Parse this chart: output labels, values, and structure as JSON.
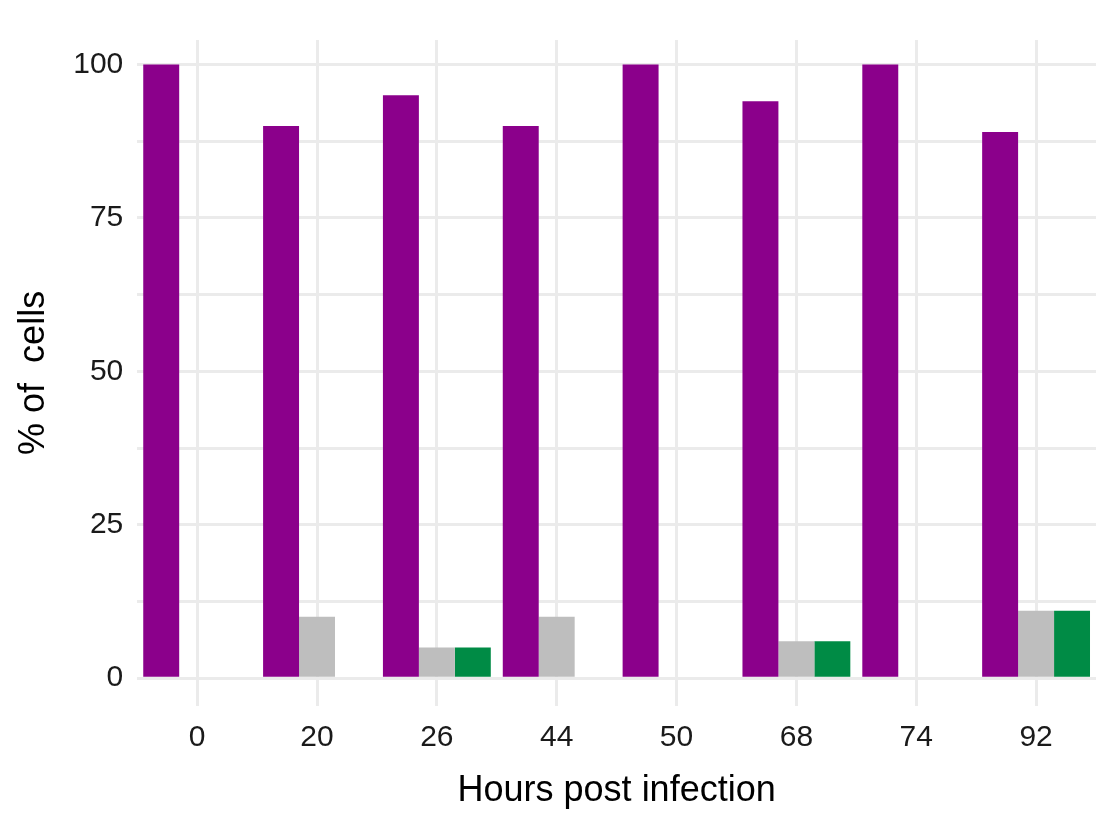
{
  "chart_data": {
    "type": "bar",
    "xlabel": "Hours post infection",
    "ylabel": "% of  cells",
    "categories": [
      "0",
      "20",
      "26",
      "44",
      "50",
      "68",
      "74",
      "92"
    ],
    "series": [
      {
        "color": "#8b008b",
        "values": [
          100,
          90,
          95,
          90,
          100,
          94,
          100,
          89
        ]
      },
      {
        "color": "#bebebe",
        "values": [
          0,
          10,
          5,
          10,
          0,
          6,
          0,
          11
        ]
      },
      {
        "color": "#008b45",
        "values": [
          0,
          0,
          5,
          0,
          0,
          6,
          0,
          11
        ]
      }
    ],
    "ylim": [
      -4.5,
      104
    ],
    "yticks": [
      0,
      {
        "value": 12.5,
        "label": null
      },
      25,
      {
        "value": 37.5,
        "label": null
      },
      50,
      {
        "value": 62.5,
        "label": null
      },
      75,
      {
        "value": 87.5,
        "label": null
      },
      100
    ],
    "grid": true,
    "legend": false
  }
}
